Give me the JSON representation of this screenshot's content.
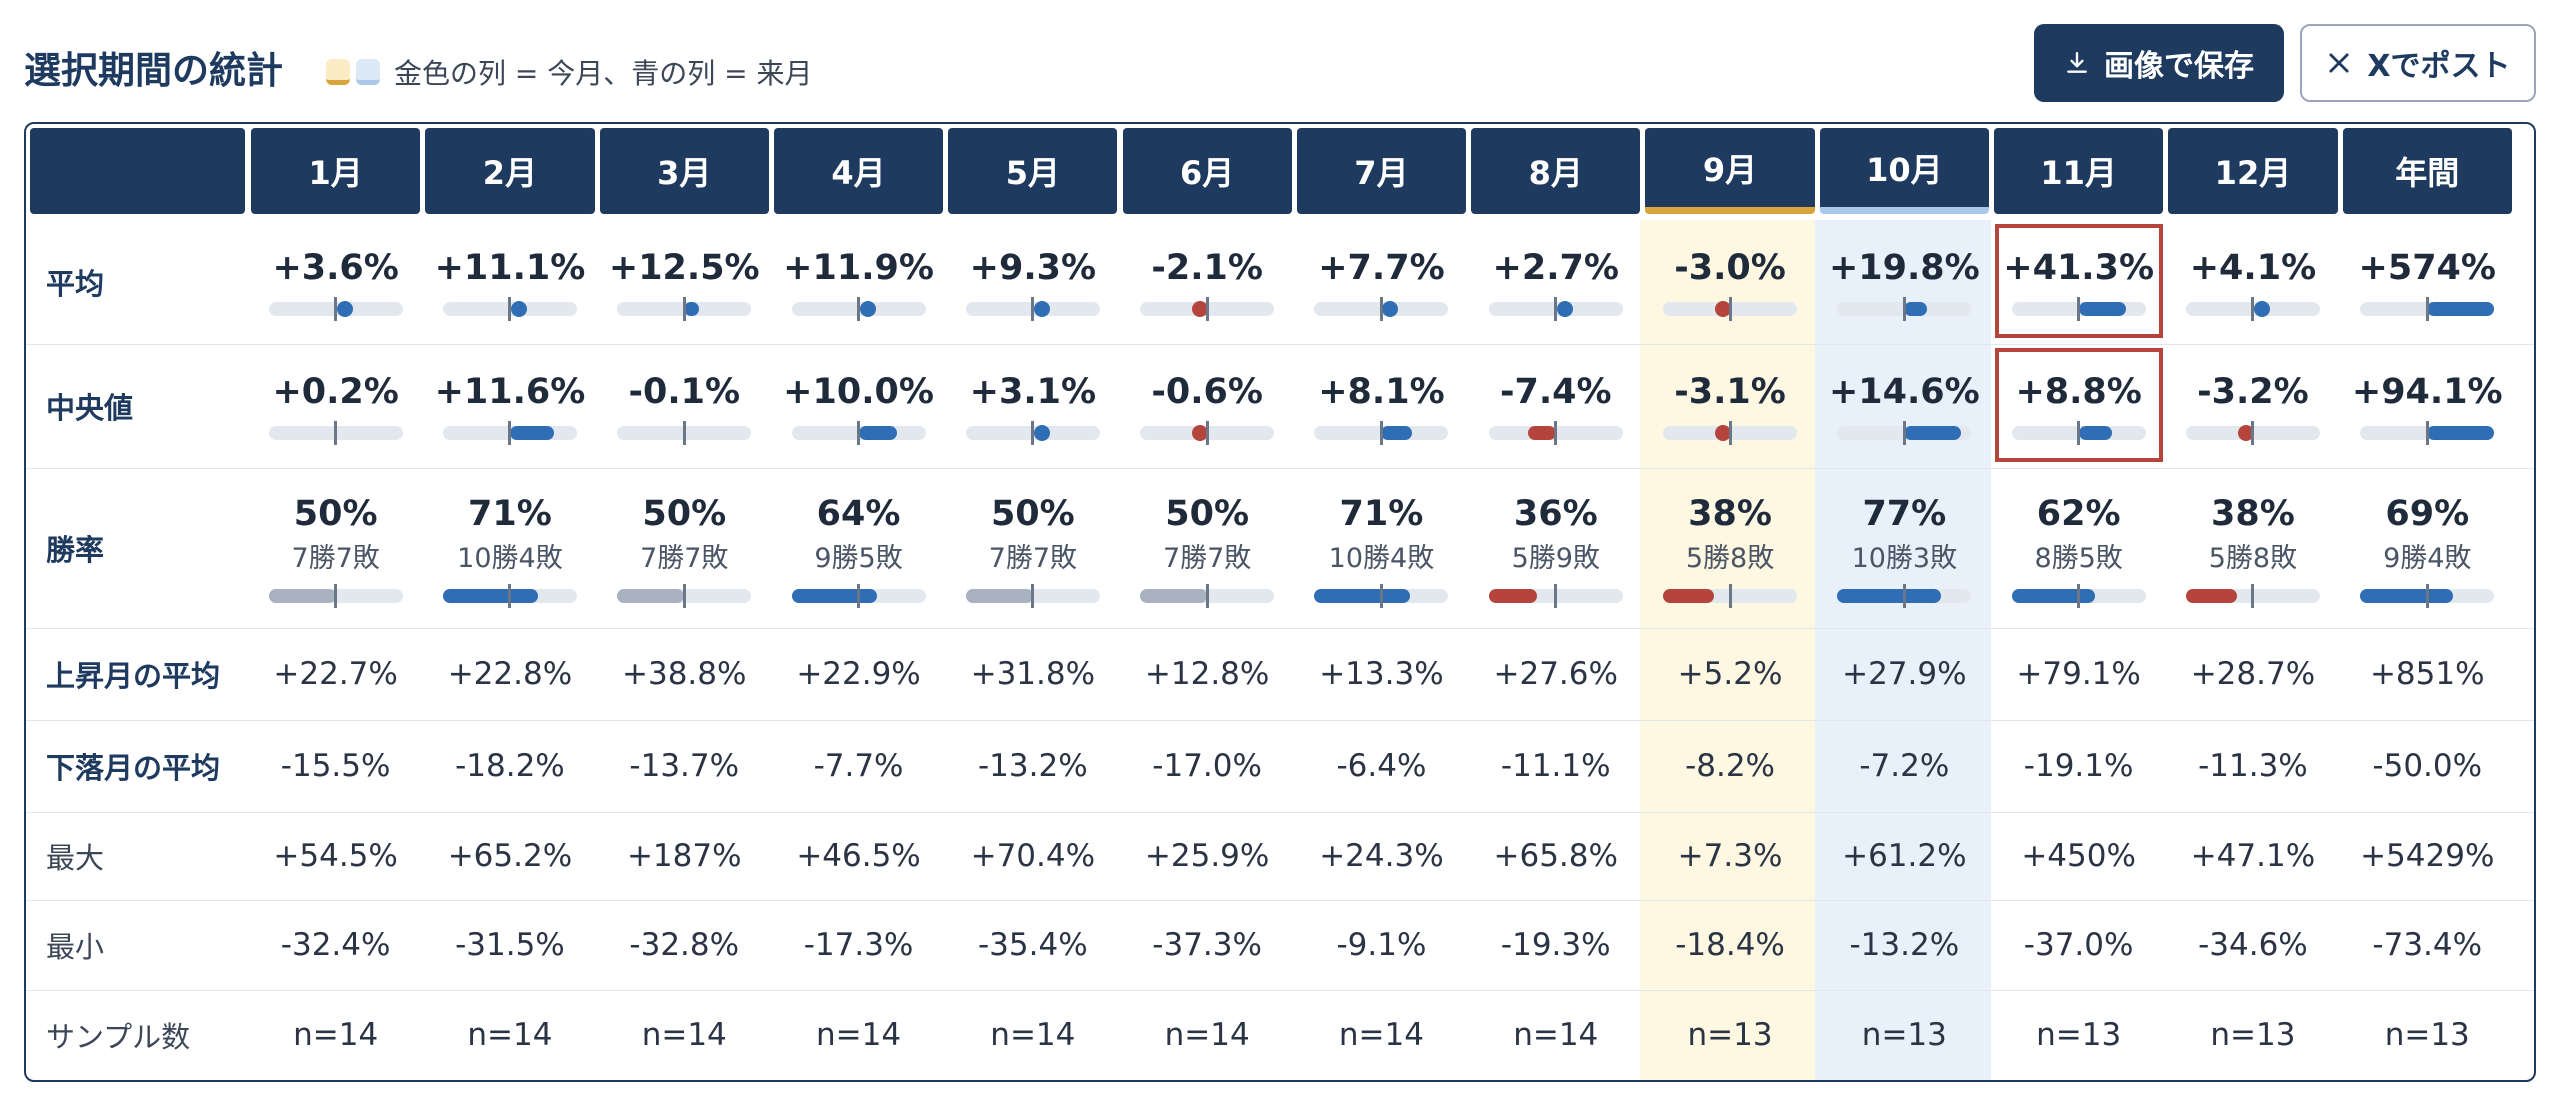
{
  "header": {
    "title": "選択期間の統計",
    "legend_text": "金色の列 = 今月、青の列 = 来月",
    "save_label": "画像で保存",
    "post_label": "Xでポスト"
  },
  "colors": {
    "navy": "#1e3a5f",
    "gold": "#d7a53b",
    "blue": "#2f6db5",
    "red": "#b5443c",
    "gray": "#a8b2c0"
  },
  "columns": [
    {
      "label": "1月"
    },
    {
      "label": "2月"
    },
    {
      "label": "3月"
    },
    {
      "label": "4月"
    },
    {
      "label": "5月"
    },
    {
      "label": "6月"
    },
    {
      "label": "7月"
    },
    {
      "label": "8月"
    },
    {
      "label": "9月",
      "highlight": "current"
    },
    {
      "label": "10月",
      "highlight": "next"
    },
    {
      "label": "11月"
    },
    {
      "label": "12月"
    },
    {
      "label": "年間"
    }
  ],
  "rows": {
    "avg": {
      "label": "平均",
      "values": [
        "+3.6%",
        "+11.1%",
        "+12.5%",
        "+11.9%",
        "+9.3%",
        "-2.1%",
        "+7.7%",
        "+2.7%",
        "-3.0%",
        "+19.8%",
        "+41.3%",
        "+4.1%",
        "+574%"
      ],
      "bar": [
        0.03,
        0.1,
        0.11,
        0.1,
        0.08,
        -0.02,
        0.07,
        0.02,
        -0.03,
        0.17,
        0.35,
        0.04,
        0.5
      ],
      "boxed": [
        10
      ]
    },
    "median": {
      "label": "中央値",
      "values": [
        "+0.2%",
        "+11.6%",
        "-0.1%",
        "+10.0%",
        "+3.1%",
        "-0.6%",
        "+8.1%",
        "-7.4%",
        "-3.1%",
        "+14.6%",
        "+8.8%",
        "-3.2%",
        "+94.1%"
      ],
      "bar": [
        0.0,
        0.33,
        0.0,
        0.29,
        0.09,
        -0.02,
        0.23,
        -0.21,
        -0.09,
        0.42,
        0.25,
        -0.09,
        0.5
      ],
      "boxed": [
        10
      ]
    },
    "winrate": {
      "label": "勝率",
      "values": [
        "50%",
        "71%",
        "50%",
        "64%",
        "50%",
        "50%",
        "71%",
        "36%",
        "38%",
        "77%",
        "62%",
        "38%",
        "69%"
      ],
      "sub": [
        "7勝7敗",
        "10勝4敗",
        "7勝7敗",
        "9勝5敗",
        "7勝7敗",
        "7勝7敗",
        "10勝4敗",
        "5勝9敗",
        "5勝8敗",
        "10勝3敗",
        "8勝5敗",
        "5勝8敗",
        "9勝4敗"
      ],
      "rate": [
        0.5,
        0.71,
        0.5,
        0.64,
        0.5,
        0.5,
        0.71,
        0.36,
        0.38,
        0.77,
        0.62,
        0.38,
        0.69
      ]
    },
    "up_avg": {
      "label": "上昇月の平均",
      "values": [
        "+22.7%",
        "+22.8%",
        "+38.8%",
        "+22.9%",
        "+31.8%",
        "+12.8%",
        "+13.3%",
        "+27.6%",
        "+5.2%",
        "+27.9%",
        "+79.1%",
        "+28.7%",
        "+851%"
      ]
    },
    "down_avg": {
      "label": "下落月の平均",
      "values": [
        "-15.5%",
        "-18.2%",
        "-13.7%",
        "-7.7%",
        "-13.2%",
        "-17.0%",
        "-6.4%",
        "-11.1%",
        "-8.2%",
        "-7.2%",
        "-19.1%",
        "-11.3%",
        "-50.0%"
      ]
    },
    "max": {
      "label": "最大",
      "values": [
        "+54.5%",
        "+65.2%",
        "+187%",
        "+46.5%",
        "+70.4%",
        "+25.9%",
        "+24.3%",
        "+65.8%",
        "+7.3%",
        "+61.2%",
        "+450%",
        "+47.1%",
        "+5429%"
      ]
    },
    "min": {
      "label": "最小",
      "values": [
        "-32.4%",
        "-31.5%",
        "-32.8%",
        "-17.3%",
        "-35.4%",
        "-37.3%",
        "-9.1%",
        "-19.3%",
        "-18.4%",
        "-13.2%",
        "-37.0%",
        "-34.6%",
        "-73.4%"
      ]
    },
    "samples": {
      "label": "サンプル数",
      "values": [
        "n=14",
        "n=14",
        "n=14",
        "n=14",
        "n=14",
        "n=14",
        "n=14",
        "n=14",
        "n=13",
        "n=13",
        "n=13",
        "n=13",
        "n=13"
      ]
    }
  }
}
